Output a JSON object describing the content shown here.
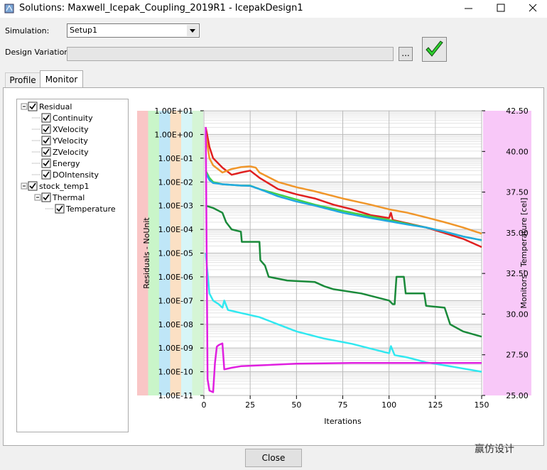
{
  "window": {
    "title": "Solutions: Maxwell_Icepak_Coupling_2019R1 - IcepakDesign1"
  },
  "form": {
    "simulation_label": "Simulation:",
    "simulation_value": "Setup1",
    "design_variation_label": "Design Variation:",
    "browse_button": "..."
  },
  "tabs": [
    "Profile",
    "Monitor"
  ],
  "tree": {
    "residual": "Residual",
    "monitor": "stock_temp1",
    "group": "Thermal"
  },
  "close_button": "Close",
  "watermark": "赢仿设计",
  "chart_data": {
    "type": "line",
    "xlabel": "Iterations",
    "ylabel": "Residuals - NoUnit",
    "y2label": "Monitors - Temperature [cel]",
    "xlim": [
      0,
      150
    ],
    "xticks": [
      0,
      25,
      50,
      75,
      100,
      125,
      150
    ],
    "ylim": [
      1e-11,
      10
    ],
    "log_y": true,
    "grid": true,
    "minor_grid": true,
    "yticks": [
      {
        "value": 1e-11,
        "label": "1.00E-11"
      },
      {
        "value": 1e-10,
        "label": "1.00E-10"
      },
      {
        "value": 1e-09,
        "label": "1.00E-09"
      },
      {
        "value": 1e-08,
        "label": "1.00E-08"
      },
      {
        "value": 1e-07,
        "label": "1.00E-07"
      },
      {
        "value": 1e-06,
        "label": "1.00E-06"
      },
      {
        "value": 1e-05,
        "label": "1.00E-05"
      },
      {
        "value": 0.0001,
        "label": "1.00E-04"
      },
      {
        "value": 0.001,
        "label": "1.00E-03"
      },
      {
        "value": 0.01,
        "label": "1.00E-02"
      },
      {
        "value": 0.1,
        "label": "1.00E-01"
      },
      {
        "value": 1,
        "label": "1.00E+00"
      },
      {
        "value": 10,
        "label": "1.00E+01"
      }
    ],
    "y2lim": [
      25,
      42.5
    ],
    "y2ticks": [
      {
        "value": 25,
        "label": "25.00"
      },
      {
        "value": 27.5,
        "label": "27.50"
      },
      {
        "value": 30,
        "label": "30.00"
      },
      {
        "value": 32.5,
        "label": "32.50"
      },
      {
        "value": 35,
        "label": "35.00"
      },
      {
        "value": 37.5,
        "label": "37.50"
      },
      {
        "value": 40,
        "label": "40.00"
      },
      {
        "value": 42.5,
        "label": "42.50"
      }
    ],
    "series": [
      {
        "name": "Continuity",
        "color": "#e02020",
        "x": [
          1,
          3,
          5,
          10,
          15,
          20,
          25,
          30,
          40,
          50,
          60,
          70,
          80,
          90,
          100,
          101,
          102,
          110,
          120,
          130,
          140,
          150
        ],
        "values": [
          2,
          0.3,
          0.1,
          0.04,
          0.02,
          0.025,
          0.03,
          0.015,
          0.005,
          0.003,
          0.002,
          0.0011,
          0.0007,
          0.0004,
          0.0003,
          0.0005,
          0.00025,
          0.00018,
          0.00012,
          7e-05,
          4e-05,
          1.8e-05
        ]
      },
      {
        "name": "XVelocity",
        "color": "#f0962a",
        "x": [
          1,
          3,
          5,
          10,
          15,
          20,
          25,
          28,
          30,
          40,
          50,
          60,
          75,
          90,
          100,
          110,
          120,
          130,
          140,
          150
        ],
        "values": [
          1,
          0.1,
          0.05,
          0.025,
          0.035,
          0.042,
          0.045,
          0.04,
          0.025,
          0.01,
          0.006,
          0.004,
          0.002,
          0.0011,
          0.0007,
          0.0005,
          0.00032,
          0.0002,
          0.00012,
          6.6e-05
        ]
      },
      {
        "name": "YVelocity",
        "color": "#44d044",
        "x": [
          1,
          3,
          5,
          10,
          20,
          25,
          30,
          40,
          50,
          60,
          75,
          90,
          100,
          110,
          120,
          130,
          140,
          150
        ],
        "values": [
          0.03,
          0.015,
          0.01,
          0.008,
          0.007,
          0.007,
          0.005,
          0.003,
          0.0018,
          0.0011,
          0.0006,
          0.00035,
          0.00025,
          0.00017,
          0.00012,
          8e-05,
          5e-05,
          3.5e-05
        ]
      },
      {
        "name": "ZVelocity",
        "color": "#20a8e0",
        "x": [
          1,
          3,
          5,
          10,
          20,
          25,
          30,
          40,
          50,
          60,
          75,
          90,
          100,
          110,
          120,
          130,
          140,
          150
        ],
        "values": [
          0.025,
          0.012,
          0.009,
          0.008,
          0.007,
          0.0068,
          0.005,
          0.0025,
          0.0015,
          0.001,
          0.0005,
          0.0003,
          0.00022,
          0.00016,
          0.00012,
          8e-05,
          5e-05,
          3.5e-05
        ]
      },
      {
        "name": "Energy",
        "color": "#1a8a3a",
        "x": [
          1,
          5,
          10,
          12,
          15,
          20,
          20.5,
          30,
          30.5,
          33,
          35,
          45,
          60,
          65,
          70,
          85,
          100,
          102,
          103,
          104,
          108,
          109,
          119,
          120,
          130,
          133,
          140,
          150
        ],
        "values": [
          0.001,
          0.0008,
          0.0005,
          0.0002,
          0.0001,
          8e-05,
          3e-05,
          3e-05,
          5e-06,
          3e-06,
          1e-06,
          7e-07,
          6e-07,
          4e-07,
          3e-07,
          2e-07,
          1e-07,
          7e-08,
          7e-08,
          1e-06,
          1e-06,
          2e-07,
          2e-07,
          6e-08,
          5e-08,
          1e-08,
          5e-09,
          3e-09
        ]
      },
      {
        "name": "DOIntensity",
        "color": "#30e8f0",
        "x": [
          1,
          3,
          5,
          8,
          10,
          11,
          13,
          20,
          30,
          40,
          50,
          65,
          80,
          100,
          101,
          103,
          110,
          120,
          135,
          150
        ],
        "values": [
          1e-05,
          2e-07,
          1e-07,
          7e-08,
          5e-08,
          1e-07,
          4e-08,
          3e-08,
          2e-08,
          1e-08,
          5e-09,
          2.5e-09,
          1.5e-09,
          6e-10,
          1.2e-09,
          5e-10,
          4e-10,
          2.5e-10,
          1.6e-10,
          1e-10
        ]
      },
      {
        "name": "Temperature",
        "color": "#e020e0",
        "axis": "y2",
        "x": [
          1,
          2,
          3,
          5,
          6,
          7,
          8,
          10,
          11,
          15,
          20,
          30,
          50,
          80,
          150
        ],
        "values": [
          41.5,
          26.0,
          25.3,
          25.2,
          27.0,
          28.0,
          28.1,
          28.2,
          26.6,
          26.7,
          26.8,
          26.85,
          26.95,
          27.0,
          27.0
        ]
      }
    ]
  }
}
